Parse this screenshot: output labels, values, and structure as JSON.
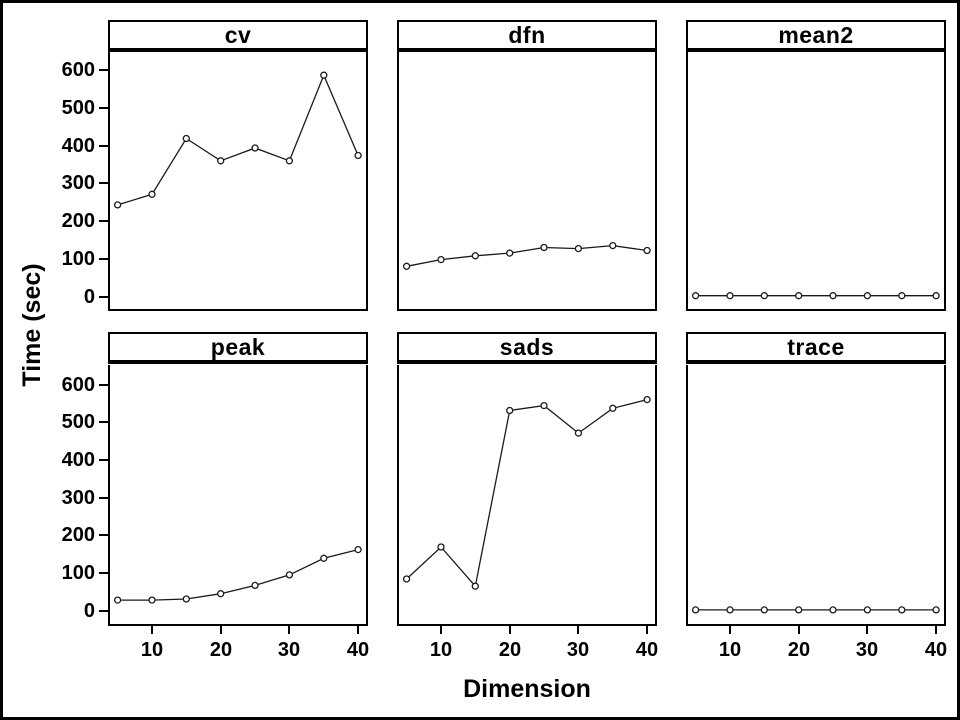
{
  "chart_data": {
    "type": "line",
    "layout": "trellis-2x3",
    "xlabel": "Dimension",
    "ylabel": "Time (sec)",
    "x": [
      5,
      10,
      15,
      20,
      25,
      30,
      35,
      40
    ],
    "x_ticks": [
      10,
      20,
      30,
      40
    ],
    "y_ticks": [
      0,
      100,
      200,
      300,
      400,
      500,
      600
    ],
    "ylim": [
      -40,
      650
    ],
    "xlim": [
      3.6,
      41.4
    ],
    "grid": "off",
    "marker": "open-circle",
    "line_color": "#1a1a1a",
    "text_color": "#000000",
    "background": "#ffffff",
    "panels": [
      {
        "name": "cv",
        "values": [
          243,
          271,
          419,
          360,
          394,
          360,
          587,
          374
        ]
      },
      {
        "name": "dfn",
        "values": [
          80,
          98,
          108,
          115,
          130,
          127,
          135,
          122
        ]
      },
      {
        "name": "mean2",
        "values": [
          2,
          2,
          2,
          2,
          2,
          2,
          2,
          2
        ]
      },
      {
        "name": "peak",
        "values": [
          28,
          28,
          31,
          45,
          67,
          95,
          139,
          162
        ]
      },
      {
        "name": "sads",
        "values": [
          84,
          169,
          65,
          531,
          544,
          471,
          537,
          560
        ]
      },
      {
        "name": "trace",
        "values": [
          2,
          2,
          2,
          2,
          2,
          2,
          2,
          2
        ]
      }
    ]
  }
}
